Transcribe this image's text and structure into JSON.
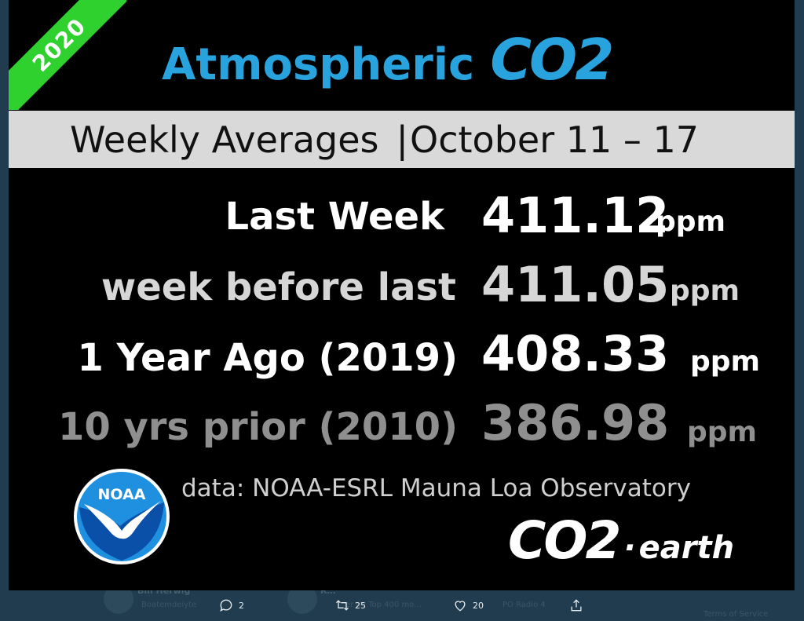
{
  "image": {
    "ribbon_text": "2020",
    "title_word": "Atmospheric",
    "title_formula": "CO2",
    "subtitle_left": "Weekly Averages",
    "subtitle_sep": "|",
    "subtitle_right": "October 11 – 17",
    "rows": [
      {
        "label": "Last Week",
        "value": "411.12",
        "unit": "ppm"
      },
      {
        "label": "week before last",
        "value": "411.05",
        "unit": "ppm"
      },
      {
        "label": "1 Year Ago  (2019)",
        "value": "408.33",
        "unit": "ppm"
      },
      {
        "label": "10 yrs prior (2010)",
        "value": "386.98",
        "unit": "ppm"
      }
    ],
    "credit": "data: NOAA-ESRL Mauna Loa Observatory",
    "noaa_logo_text": "NOAA",
    "brand_main": "CO2",
    "brand_dot": "·",
    "brand_suffix": "earth",
    "colors": {
      "title": "#29a3dd",
      "ribbon": "#2ed12e",
      "band": "#d9d9d9",
      "noaa_blue": "#1f8fe0"
    }
  },
  "tweet_actions": {
    "reply": {
      "icon": "reply-icon",
      "count": "2"
    },
    "retweet": {
      "icon": "retweet-icon",
      "count": "25"
    },
    "like": {
      "icon": "heart-icon",
      "count": "20"
    },
    "share": {
      "icon": "share-icon"
    }
  },
  "background": {
    "user1": "Bill Herwig",
    "user2": "R…",
    "snippet": "Boatemdeiyte",
    "snippet2": "er de Top 400 mo…",
    "snippet3": "ieke stukken nu o…",
    "snippet4": "PO Radio 4",
    "footer": "Terms of Service"
  }
}
